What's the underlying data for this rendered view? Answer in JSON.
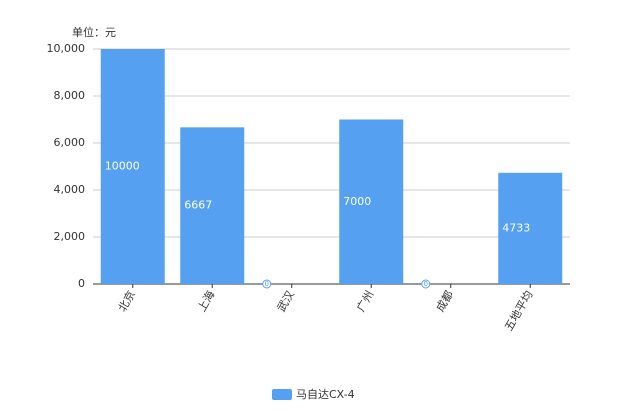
{
  "chart_data": {
    "type": "bar",
    "ylabel": "单位：元",
    "categories": [
      "北京",
      "上海",
      "武汉",
      "广州",
      "成都",
      "五地平均"
    ],
    "series": [
      {
        "name": "马自达CX-4",
        "color": "#55a0f0",
        "values": [
          10000,
          6667,
          0,
          7000,
          0,
          4733
        ]
      }
    ],
    "ylim": [
      0,
      10000
    ],
    "yticks": [
      0,
      {
        "value": 2000,
        "label": "2,000"
      },
      {
        "value": 4000,
        "label": "4,000"
      },
      {
        "value": 6000,
        "label": "6,000"
      },
      {
        "value": 8000,
        "label": "8,000"
      },
      {
        "value": 10000,
        "label": "10,000"
      }
    ],
    "grid": true,
    "legend": "bottom"
  }
}
